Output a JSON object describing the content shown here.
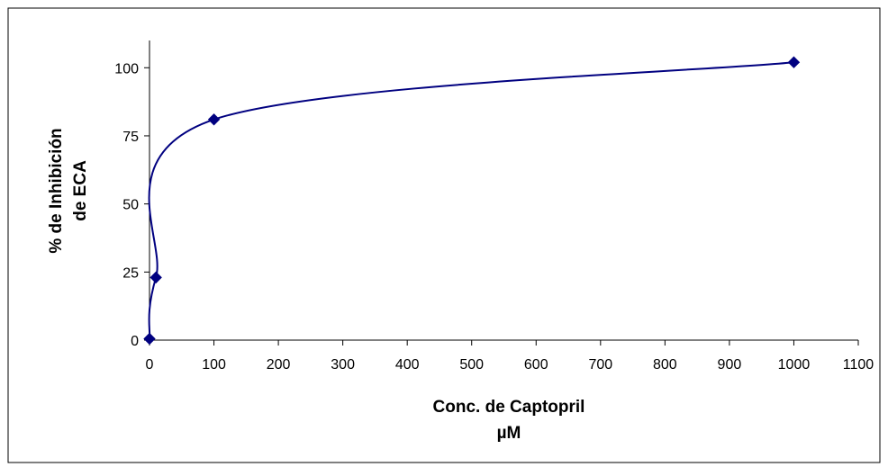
{
  "chart_data": {
    "type": "scatter",
    "title": "",
    "xlabel": [
      "Conc. de Captopril",
      "µM"
    ],
    "ylabel": [
      "% de Inhibición",
      "de ECA"
    ],
    "xlim": [
      0,
      1100
    ],
    "ylim": [
      0,
      110
    ],
    "xticks": [
      0,
      100,
      200,
      300,
      400,
      500,
      600,
      700,
      800,
      900,
      1000,
      1100
    ],
    "yticks": [
      0,
      25,
      50,
      75,
      100
    ],
    "grid": false,
    "legend": "none",
    "series": [
      {
        "x": [
          0,
          10,
          100,
          1000
        ],
        "y": [
          0.5,
          23,
          81,
          102
        ],
        "marker": "diamond",
        "line": "smoothed",
        "color": "#000080"
      }
    ]
  }
}
